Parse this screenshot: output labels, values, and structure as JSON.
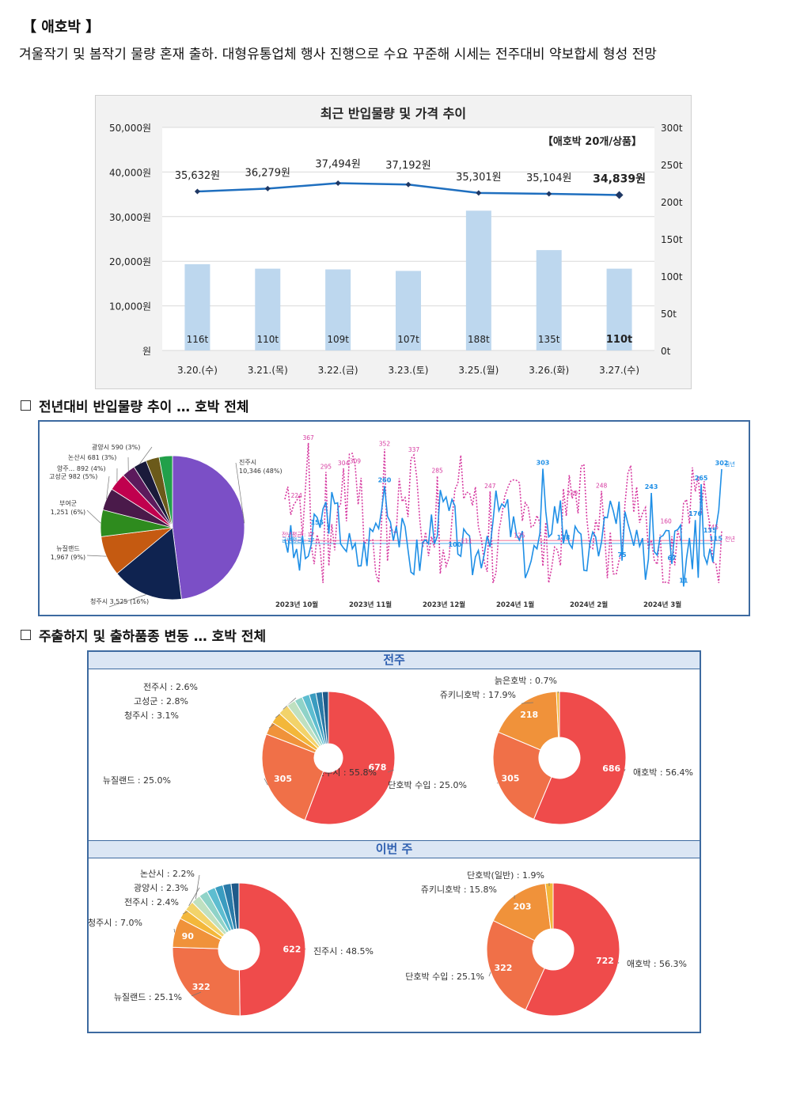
{
  "page": {
    "title": "【 애호박 】",
    "paragraph": "겨울작기 및 봄작기 물량 혼재 출하. 대형유통업체 행사 진행으로 수요 꾸준해 시세는 전주대비 약보합세 형성 전망"
  },
  "combo_chart": {
    "title": "최근 반입물량 및 가격 추이",
    "note": "【애호박 20개/상품】",
    "left_ticks": [
      "50,000원",
      "40,000원",
      "30,000원",
      "20,000원",
      "10,000원",
      "원"
    ],
    "right_ticks": [
      "300t",
      "250t",
      "200t",
      "150t",
      "100t",
      "50t",
      "0t"
    ],
    "dates": [
      "3.20.(수)",
      "3.21.(목)",
      "3.22.(금)",
      "3.23.(토)",
      "3.25.(월)",
      "3.26.(화)",
      "3.27.(수)"
    ],
    "prices": [
      35632,
      36279,
      37494,
      37192,
      35301,
      35104,
      34839
    ],
    "price_labels": [
      "35,632원",
      "36,279원",
      "37,494원",
      "37,192원",
      "35,301원",
      "35,104원",
      "34,839원"
    ],
    "volumes": [
      116,
      110,
      109,
      107,
      188,
      135,
      110
    ],
    "volume_labels": [
      "116t",
      "110t",
      "109t",
      "107t",
      "188t",
      "135t",
      "110t"
    ],
    "colors": {
      "bar": "#bdd7ee",
      "line": "#1f6fbf",
      "marker": "#1f3864"
    }
  },
  "section1": {
    "heading": "전년대비 반입물량 추이 … 호박 전체"
  },
  "origin_pie": {
    "slices": [
      {
        "label": "진주시",
        "value_text": "10,346 (48%)",
        "value": 48,
        "color": "#7b4fc6"
      },
      {
        "label": "청주시",
        "value_text": "3,525 (16%)",
        "value": 16,
        "color": "#0f2350"
      },
      {
        "label": "뉴질랜드",
        "value_text": "1,967 (9%)",
        "value": 9,
        "color": "#c55a11"
      },
      {
        "label": "부여군",
        "value_text": "1,251 (6%)",
        "value": 6,
        "color": "#2e8b1e"
      },
      {
        "label": "고성군",
        "value_text": "982 (5%)",
        "value": 5,
        "color": "#4a1a4a"
      },
      {
        "label": "양주...",
        "value_text": "892 (4%)",
        "value": 4,
        "color": "#c0004e"
      },
      {
        "label": "논산시",
        "value_text": "681 (3%)",
        "value": 3,
        "color": "#5c1a5c"
      },
      {
        "label": "광양시",
        "value_text": "590 (3%)",
        "value": 3,
        "color": "#1a1a3a"
      },
      {
        "label": "",
        "value_text": "",
        "value": 3,
        "color": "#6b5a1a"
      },
      {
        "label": "",
        "value_text": "",
        "value": 3,
        "color": "#22a04a"
      }
    ]
  },
  "trend_chart": {
    "months": [
      "2023년 10월",
      "2023년 11월",
      "2023년 12월",
      "2024년 1월",
      "2024년 2월",
      "2024년 3월"
    ],
    "series_labels": {
      "current": "금년",
      "previous": "전년"
    },
    "avg_labels": {
      "previous": "전년평균 : 17",
      "current": "금년평균 : 17"
    },
    "current_peaks": [
      "260",
      "303",
      "243",
      "265",
      "302",
      "176",
      "118",
      "75",
      "67",
      "11",
      "135",
      "115",
      "100",
      "155"
    ],
    "previous_peaks": [
      "367",
      "295",
      "304",
      "309",
      "352",
      "337",
      "285",
      "247",
      "229",
      "248",
      "224",
      "111",
      "125",
      "160",
      "145"
    ],
    "colors": {
      "current": "#1f8fe6",
      "previous": "#d63aa0"
    }
  },
  "section2": {
    "heading": "주출하지 및 출하품종 변동 … 호박 전체"
  },
  "weekly": {
    "last_week_label": "전주",
    "this_week_label": "이번 주",
    "last_origin": [
      {
        "label": "진주시 : 55.8%",
        "value": 678,
        "inner": "678"
      },
      {
        "label": "뉴질랜드 : 25.0%",
        "value": 305,
        "inner": "305"
      },
      {
        "label": "청주시 : 3.1%",
        "value": 38,
        "inner": ""
      },
      {
        "label": "고성군 : 2.8%",
        "value": 34,
        "inner": ""
      },
      {
        "label": "전주시 : 2.6%",
        "value": 32,
        "inner": ""
      },
      {
        "label": "",
        "value": 26,
        "inner": ""
      },
      {
        "label": "",
        "value": 24,
        "inner": ""
      },
      {
        "label": "",
        "value": 22,
        "inner": ""
      },
      {
        "label": "",
        "value": 20,
        "inner": ""
      },
      {
        "label": "",
        "value": 19,
        "inner": ""
      },
      {
        "label": "",
        "value": 18,
        "inner": ""
      }
    ],
    "last_variety": [
      {
        "label": "애호박 : 56.4%",
        "value": 686,
        "inner": "686"
      },
      {
        "label": "단호박 수입 : 25.0%",
        "value": 305,
        "inner": "305"
      },
      {
        "label": "쥬키니호박 : 17.9%",
        "value": 218,
        "inner": "218"
      },
      {
        "label": "늙은호박 : 0.7%",
        "value": 9,
        "inner": ""
      }
    ],
    "this_origin": [
      {
        "label": "진주시 : 48.5%",
        "value": 622,
        "inner": "622"
      },
      {
        "label": "뉴질랜드 : 25.1%",
        "value": 322,
        "inner": "322"
      },
      {
        "label": "청주시 : 7.0%",
        "value": 90,
        "inner": "90"
      },
      {
        "label": "전주시 : 2.4%",
        "value": 31,
        "inner": ""
      },
      {
        "label": "광양시 : 2.3%",
        "value": 30,
        "inner": ""
      },
      {
        "label": "논산시 : 2.2%",
        "value": 28,
        "inner": ""
      },
      {
        "label": "",
        "value": 27,
        "inner": ""
      },
      {
        "label": "",
        "value": 26,
        "inner": ""
      },
      {
        "label": "",
        "value": 25,
        "inner": ""
      },
      {
        "label": "",
        "value": 25,
        "inner": ""
      },
      {
        "label": "",
        "value": 24,
        "inner": ""
      }
    ],
    "this_variety": [
      {
        "label": "애호박 : 56.3%",
        "value": 722,
        "inner": "722"
      },
      {
        "label": "단호박 수입 : 25.1%",
        "value": 322,
        "inner": "322"
      },
      {
        "label": "쥬키니호박 : 15.8%",
        "value": 203,
        "inner": "203"
      },
      {
        "label": "단호박(일반) : 1.9%",
        "value": 24,
        "inner": ""
      }
    ],
    "palette": [
      "#ef4b4b",
      "#f07048",
      "#f0923a",
      "#f3b73a",
      "#f2d36a",
      "#bfe0c0",
      "#8fd3c8",
      "#5dbdd0",
      "#3a9cc0",
      "#2a7aa8",
      "#1f5a8a"
    ]
  }
}
